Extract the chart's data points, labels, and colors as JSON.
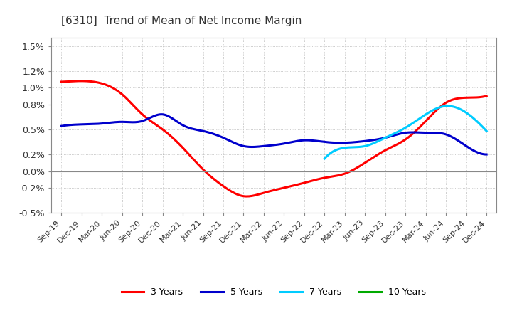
{
  "title": "[6310]  Trend of Mean of Net Income Margin",
  "background_color": "#ffffff",
  "plot_bg_color": "#ffffff",
  "grid_color": "#aaaaaa",
  "legend": [
    "3 Years",
    "5 Years",
    "7 Years",
    "10 Years"
  ],
  "legend_colors": [
    "#ff0000",
    "#0000cc",
    "#00ccff",
    "#00aa00"
  ],
  "x_labels": [
    "Sep-19",
    "Dec-19",
    "Mar-20",
    "Jun-20",
    "Sep-20",
    "Dec-20",
    "Mar-21",
    "Jun-21",
    "Sep-21",
    "Dec-21",
    "Mar-22",
    "Jun-22",
    "Sep-22",
    "Dec-22",
    "Mar-23",
    "Jun-23",
    "Sep-23",
    "Dec-23",
    "Mar-24",
    "Jun-24",
    "Sep-24",
    "Dec-24"
  ],
  "series_3y": [
    1.07,
    1.08,
    1.05,
    0.92,
    0.68,
    0.5,
    0.28,
    0.02,
    -0.18,
    -0.3,
    -0.26,
    -0.2,
    -0.14,
    -0.08,
    -0.03,
    0.1,
    0.25,
    0.38,
    0.6,
    0.82,
    0.88,
    0.9
  ],
  "series_5y": [
    0.54,
    0.56,
    0.57,
    0.59,
    0.6,
    0.68,
    0.55,
    0.48,
    0.4,
    0.3,
    0.3,
    0.33,
    0.37,
    0.35,
    0.34,
    0.36,
    0.4,
    0.46,
    0.46,
    0.44,
    0.3,
    0.2
  ],
  "series_7y": [
    null,
    null,
    null,
    null,
    null,
    null,
    null,
    null,
    null,
    null,
    null,
    null,
    null,
    0.15,
    0.28,
    0.3,
    0.4,
    0.52,
    0.68,
    0.78,
    0.7,
    0.48
  ],
  "series_10y": [
    null,
    null,
    null,
    null,
    null,
    null,
    null,
    null,
    null,
    null,
    null,
    null,
    null,
    null,
    null,
    null,
    null,
    null,
    null,
    null,
    null,
    null
  ],
  "ylim_min": -0.005,
  "ylim_max": 0.016,
  "ytick_vals": [
    -0.005,
    -0.002,
    0.0,
    0.002,
    0.005,
    0.008,
    0.01,
    0.012,
    0.015
  ],
  "ytick_labels": [
    "-0.5%",
    "-0.2%",
    "0.0%",
    "0.2%",
    "0.5%",
    "0.8%",
    "1.0%",
    "1.2%",
    "1.5%"
  ]
}
